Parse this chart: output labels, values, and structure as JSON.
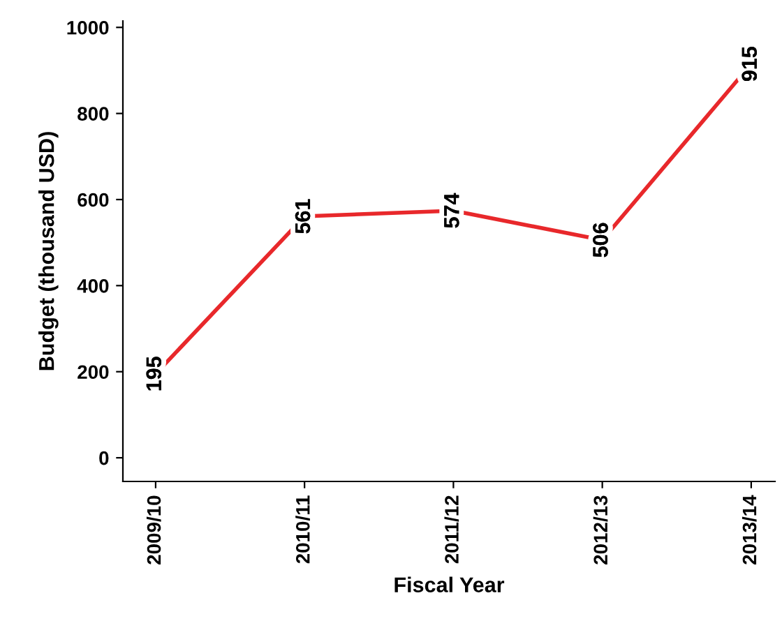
{
  "chart_data": {
    "type": "line",
    "xlabel": "Fiscal Year",
    "ylabel": "Budget (thousand USD)",
    "categories": [
      "2009/10",
      "2010/11",
      "2011/12",
      "2012/13",
      "2013/14"
    ],
    "series": [
      {
        "color": "#e8282b",
        "values": [
          195,
          561,
          574,
          506,
          915
        ]
      }
    ],
    "ylim": [
      -55,
      1015
    ],
    "yticks": [
      0,
      200,
      400,
      600,
      800,
      1000
    ],
    "data_labels": true,
    "grid": false,
    "legend": false,
    "marker": "none",
    "line_style": "solid"
  }
}
